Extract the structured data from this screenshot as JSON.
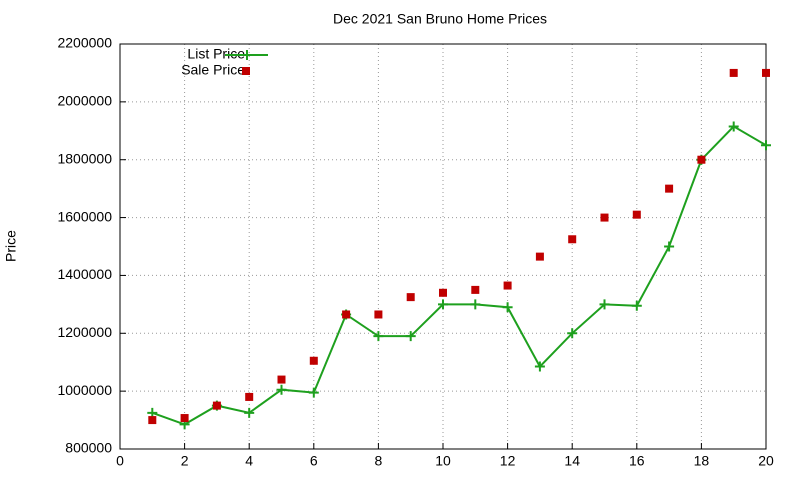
{
  "chart_data": {
    "type": "line",
    "title": "Dec 2021 San Bruno Home Prices",
    "y_label": "Price",
    "x": [
      1,
      2,
      3,
      4,
      5,
      6,
      7,
      8,
      9,
      10,
      11,
      12,
      13,
      14,
      15,
      16,
      17,
      18,
      19,
      20
    ],
    "series": [
      {
        "name": "List Price",
        "color": "#1ea01e",
        "style": "linespoints",
        "values": [
          925000,
          885000,
          950000,
          925000,
          1005000,
          995000,
          1265000,
          1190000,
          1190000,
          1300000,
          1300000,
          1290000,
          1085000,
          1200000,
          1300000,
          1295000,
          1500000,
          1800000,
          1915000,
          1850000
        ]
      },
      {
        "name": "Sale Price",
        "color": "#c00000",
        "style": "points",
        "values": [
          900000,
          907000,
          950000,
          980000,
          1040000,
          1105000,
          1265000,
          1265000,
          1325000,
          1340000,
          1350000,
          1365000,
          1465000,
          1525000,
          1600000,
          1610000,
          1700000,
          1800000,
          2100000,
          2100000
        ]
      }
    ],
    "xlim": [
      0,
      20
    ],
    "xticks": [
      0,
      2,
      4,
      6,
      8,
      10,
      12,
      14,
      16,
      18,
      20
    ],
    "ylim": [
      800000,
      2200000
    ],
    "yticks": [
      800000,
      1000000,
      1200000,
      1400000,
      1600000,
      1800000,
      2000000,
      2200000
    ],
    "grid": true,
    "legend": "top-left"
  }
}
